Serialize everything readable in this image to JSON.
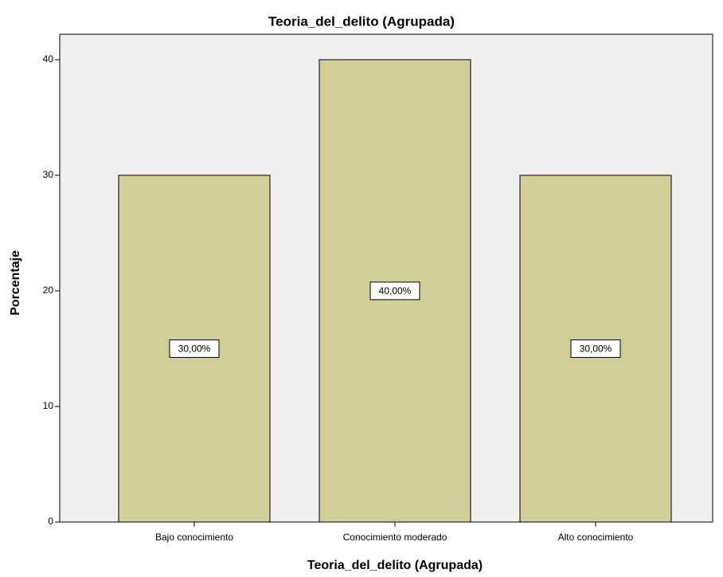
{
  "chart_data": {
    "type": "bar",
    "title": "Teoria_del_delito (Agrupada)",
    "x_label": "Teoria_del_delito (Agrupada)",
    "y_label": "Porcentaje",
    "categories": [
      "Bajo conocimiento",
      "Conocimiento moderado",
      "Alto conocimiento"
    ],
    "values": [
      30,
      40,
      30
    ],
    "value_labels": [
      "30,00%",
      "40,00%",
      "30,00%"
    ],
    "color": "#d3ce97",
    "ylim": [
      0,
      42.2
    ],
    "yticks": [
      0,
      10,
      20,
      30,
      40
    ]
  }
}
